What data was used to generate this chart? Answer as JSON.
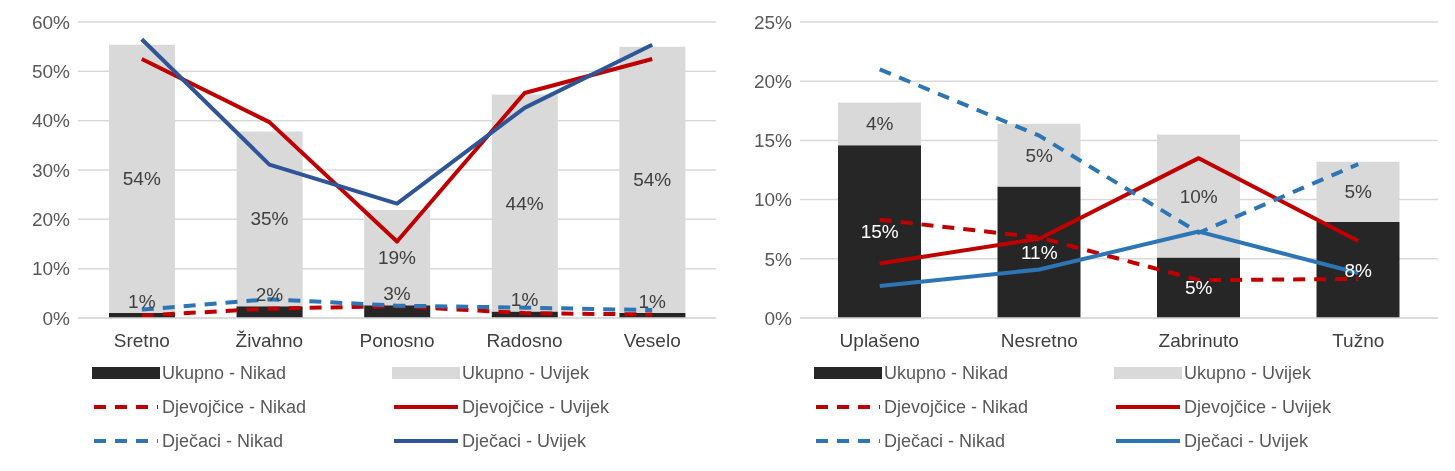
{
  "chart_data": [
    {
      "type": "bar",
      "stacked": true,
      "categories": [
        "Sretno",
        "Živahno",
        "Ponosno",
        "Radosno",
        "Veselo"
      ],
      "ylim": [
        0,
        60
      ],
      "yticks": [
        {
          "value": 0,
          "label": "0%"
        },
        {
          "value": 10,
          "label": "10%"
        },
        {
          "value": 20,
          "label": "20%"
        },
        {
          "value": 30,
          "label": "30%"
        },
        {
          "value": 40,
          "label": "40%"
        },
        {
          "value": 50,
          "label": "50%"
        },
        {
          "value": 60,
          "label": "60%"
        }
      ],
      "grid": "y",
      "legend": "bottom",
      "series": [
        {
          "name": "Ukupno - Nikad",
          "color": "#262626",
          "values": [
            1.0,
            2.4,
            2.6,
            1.3,
            1.0
          ],
          "value_labels": [
            "1%",
            "2%",
            "3%",
            "1%",
            "1%"
          ]
        },
        {
          "name": "Ukupno - Uvijek",
          "color": "#d9d9d9",
          "values": [
            54.4,
            35.4,
            19.3,
            44.0,
            54.0
          ],
          "value_labels": [
            "54%",
            "35%",
            "19%",
            "44%",
            "54%"
          ]
        },
        {
          "name": "Djevojčice - Nikad",
          "type": "line",
          "line_style": "dashed",
          "color": "#c00000",
          "values": [
            0.5,
            1.9,
            2.4,
            1.0,
            0.7
          ]
        },
        {
          "name": "Djevojčice - Uvijek",
          "type": "line",
          "line_style": "solid",
          "color": "#c00000",
          "values": [
            52.5,
            39.7,
            15.5,
            45.6,
            52.5
          ]
        },
        {
          "name": "Dječaci - Nikad",
          "type": "line",
          "line_style": "dashed",
          "color": "#2e75b6",
          "values": [
            1.7,
            3.8,
            2.5,
            2.1,
            1.6
          ]
        },
        {
          "name": "Dječaci - Uvijek",
          "type": "line",
          "line_style": "solid",
          "color": "#2f5597",
          "values": [
            56.5,
            31.1,
            23.2,
            42.6,
            55.4
          ]
        }
      ]
    },
    {
      "type": "bar",
      "stacked": true,
      "categories": [
        "Uplašeno",
        "Nesretno",
        "Zabrinuto",
        "Tužno"
      ],
      "ylim": [
        0,
        25
      ],
      "yticks": [
        {
          "value": 0,
          "label": "0%"
        },
        {
          "value": 5,
          "label": "5%"
        },
        {
          "value": 10,
          "label": "10%"
        },
        {
          "value": 15,
          "label": "15%"
        },
        {
          "value": 20,
          "label": "20%"
        },
        {
          "value": 25,
          "label": "25%"
        }
      ],
      "grid": "y",
      "legend": "bottom",
      "series": [
        {
          "name": "Ukupno - Nikad",
          "color": "#262626",
          "values": [
            14.6,
            11.1,
            5.1,
            8.1
          ],
          "value_labels": [
            "15%",
            "11%",
            "5%",
            "8%"
          ]
        },
        {
          "name": "Ukupno - Uvijek",
          "color": "#d9d9d9",
          "values": [
            3.6,
            5.3,
            10.4,
            5.1
          ],
          "value_labels": [
            "4%",
            "5%",
            "10%",
            "5%"
          ]
        },
        {
          "name": "Djevojčice - Nikad",
          "type": "line",
          "line_style": "dashed",
          "color": "#c00000",
          "values": [
            8.3,
            6.8,
            3.2,
            3.3
          ]
        },
        {
          "name": "Djevojčice - Uvijek",
          "type": "line",
          "line_style": "solid",
          "color": "#c00000",
          "values": [
            4.6,
            6.7,
            13.5,
            6.5
          ]
        },
        {
          "name": "Dječaci - Nikad",
          "type": "line",
          "line_style": "dashed",
          "color": "#2e75b6",
          "values": [
            21.0,
            15.4,
            7.2,
            13.0
          ]
        },
        {
          "name": "Dječaci - Uvijek",
          "type": "line",
          "line_style": "solid",
          "color": "#2e75b6",
          "values": [
            2.7,
            4.1,
            7.3,
            3.8
          ]
        }
      ]
    }
  ]
}
